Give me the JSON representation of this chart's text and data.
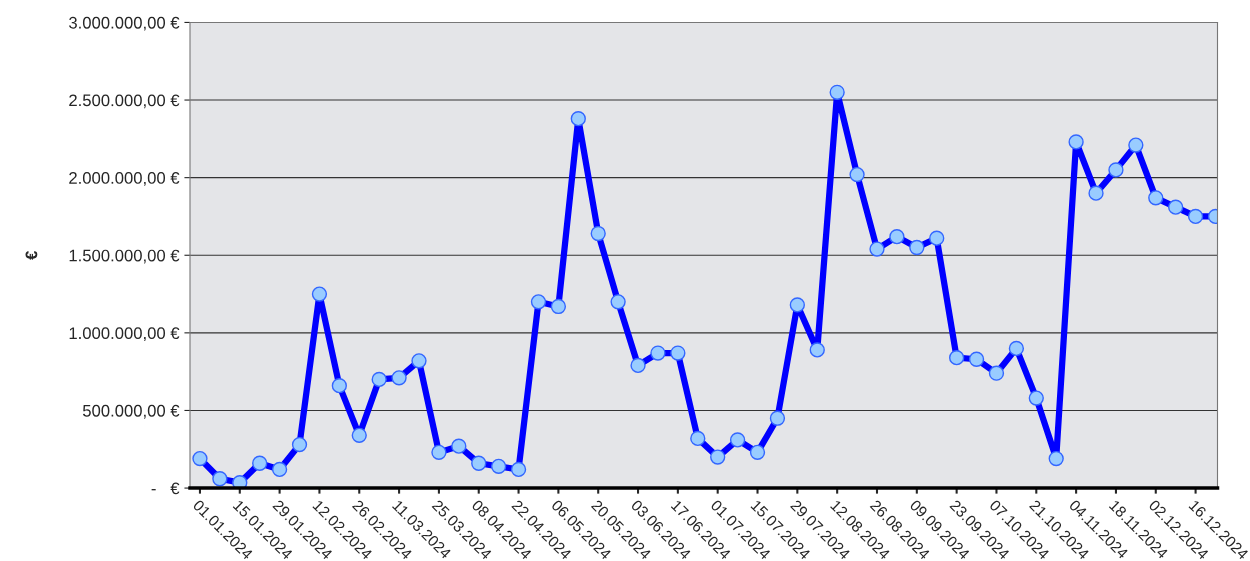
{
  "chart_data": {
    "type": "line",
    "ylabel": "€",
    "categories": [
      "01.01.2024",
      null,
      "15.01.2024",
      null,
      "29.01.2024",
      null,
      "12.02.2024",
      null,
      "26.02.2024",
      null,
      "11.03.2024",
      null,
      "25.03.2024",
      null,
      "08.04.2024",
      null,
      "22.04.2024",
      null,
      "06.05.2024",
      null,
      "20.05.2024",
      null,
      "03.06.2024",
      null,
      "17.06.2024",
      null,
      "01.07.2024",
      null,
      "15.07.2024",
      null,
      "29.07.2024",
      null,
      "12.08.2024",
      null,
      "26.08.2024",
      null,
      "09.09.2024",
      null,
      "23.09.2024",
      null,
      "07.10.2024",
      null,
      "21.10.2024",
      null,
      "04.11.2024",
      null,
      "18.11.2024",
      null,
      "02.12.2024",
      null,
      "16.12.2024",
      null
    ],
    "series": [
      {
        "color": "#0000ff",
        "values": [
          190000,
          60000,
          35000,
          160000,
          120000,
          280000,
          1250000,
          660000,
          340000,
          700000,
          710000,
          820000,
          230000,
          270000,
          160000,
          140000,
          120000,
          1200000,
          1170000,
          2380000,
          1640000,
          1200000,
          790000,
          870000,
          870000,
          320000,
          200000,
          310000,
          230000,
          450000,
          1180000,
          890000,
          2550000,
          2020000,
          1540000,
          1620000,
          1550000,
          1610000,
          840000,
          830000,
          740000,
          900000,
          580000,
          190000,
          2230000,
          1900000,
          2050000,
          2210000,
          1870000,
          1810000,
          1750000,
          1750000
        ]
      }
    ],
    "ylim": [
      0,
      3000000
    ],
    "yticks": [
      {
        "value": 0,
        "label": "-   €"
      },
      {
        "value": 500000,
        "label": "500.000,00 €"
      },
      {
        "value": 1000000,
        "label": "1.000.000,00 €"
      },
      {
        "value": 1500000,
        "label": "1.500.000,00 €"
      },
      {
        "value": 2000000,
        "label": "2.000.000,00 €"
      },
      {
        "value": 2500000,
        "label": "2.500.000,00 €"
      },
      {
        "value": 3000000,
        "label": "3.000.000,00 €"
      }
    ],
    "grid": "y",
    "marker": "circle",
    "line_style": "solid",
    "legend": false
  }
}
